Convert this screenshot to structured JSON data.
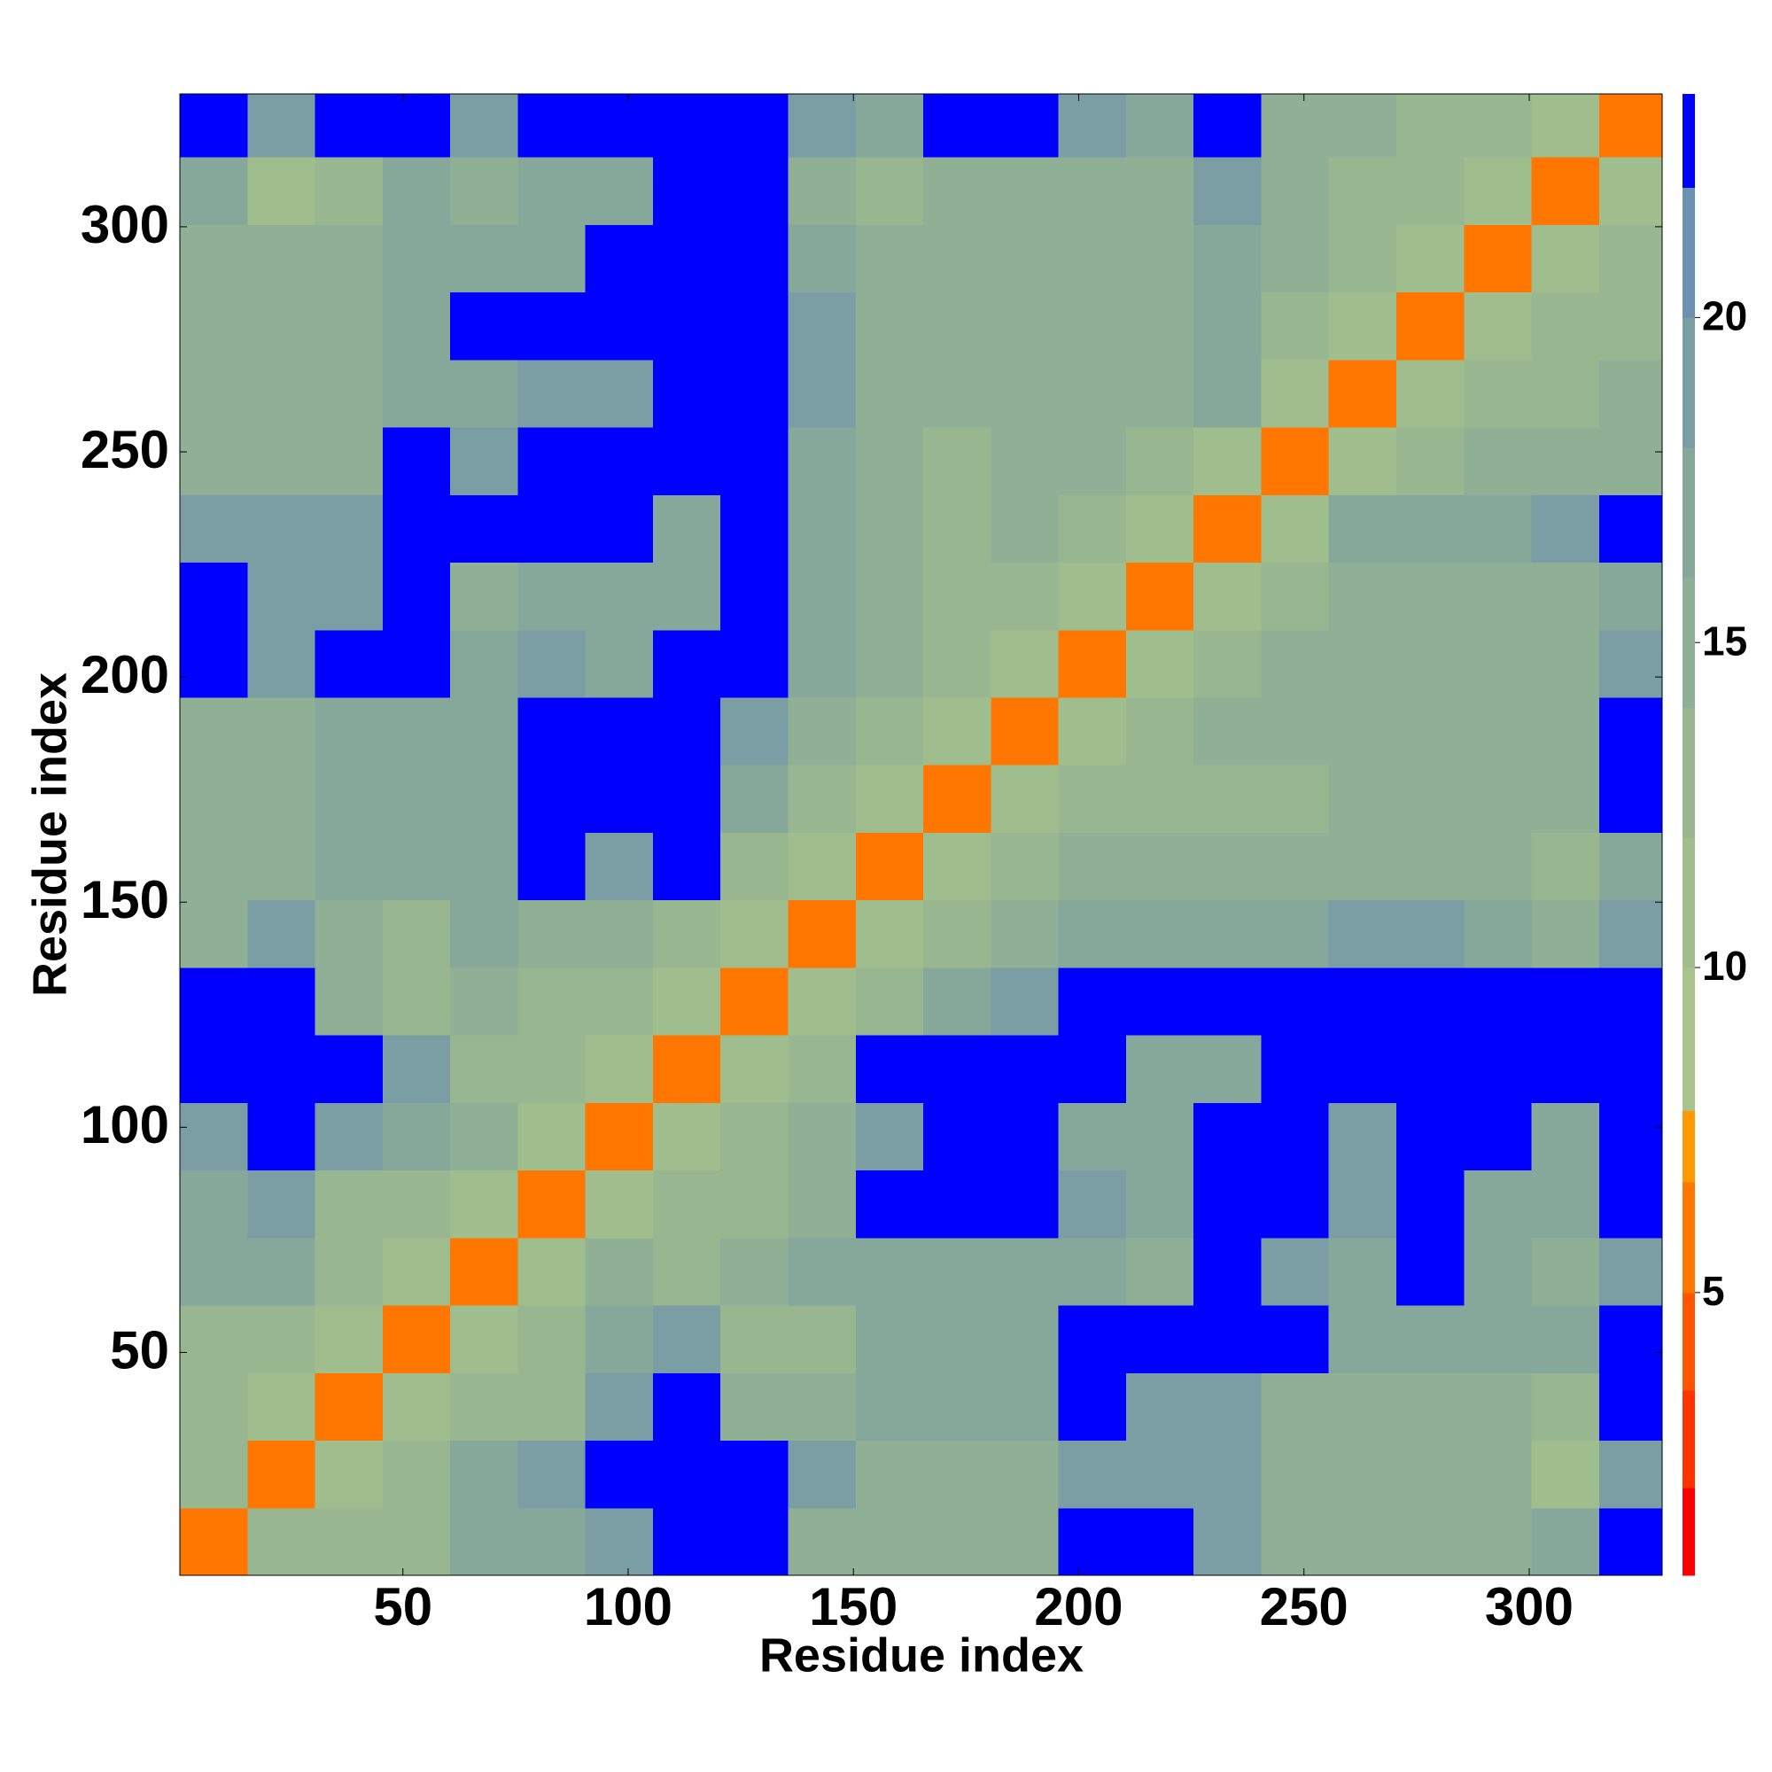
{
  "chart_data": {
    "type": "heatmap",
    "xlabel": "Residue index",
    "ylabel": "Residue index",
    "x": [
      8,
      23,
      38,
      53,
      68,
      83,
      98,
      113,
      128,
      143,
      158,
      173,
      188,
      203,
      218,
      233,
      248,
      263,
      278,
      293,
      308,
      323
    ],
    "y": [
      8,
      23,
      38,
      53,
      68,
      83,
      98,
      113,
      128,
      143,
      158,
      173,
      188,
      203,
      218,
      233,
      248,
      263,
      278,
      293,
      308,
      323
    ],
    "z": [
      [
        6,
        12,
        12,
        13,
        17,
        17,
        19,
        24,
        24,
        15,
        15,
        15,
        15,
        24,
        24,
        19,
        15,
        15,
        15,
        15,
        16,
        24
      ],
      [
        12,
        6,
        11,
        13,
        16,
        18,
        24,
        24,
        24,
        18,
        15,
        15,
        15,
        19,
        18,
        18,
        15,
        14,
        14,
        14,
        11,
        19
      ],
      [
        12,
        11,
        6,
        11,
        13,
        13,
        18,
        24,
        14,
        14,
        16,
        16,
        16,
        24,
        18,
        18,
        15,
        14,
        14,
        14,
        12,
        24
      ],
      [
        13,
        13,
        11,
        6,
        11,
        12,
        16,
        18,
        13,
        13,
        17,
        17,
        17,
        24,
        24,
        24,
        24,
        17,
        17,
        17,
        16,
        24
      ],
      [
        17,
        16,
        13,
        11,
        6,
        11,
        14,
        13,
        14,
        16,
        16,
        16,
        17,
        17,
        15,
        24,
        19,
        16,
        24,
        17,
        15,
        19
      ],
      [
        17,
        18,
        13,
        12,
        11,
        6,
        11,
        13,
        13,
        14,
        24,
        24,
        24,
        19,
        17,
        24,
        24,
        19,
        24,
        17,
        16,
        24
      ],
      [
        19,
        24,
        18,
        16,
        14,
        11,
        6,
        11,
        12,
        15,
        18,
        24,
        24,
        17,
        17,
        24,
        24,
        19,
        24,
        24,
        17,
        24
      ],
      [
        24,
        24,
        24,
        18,
        13,
        13,
        11,
        6,
        11,
        13,
        24,
        24,
        24,
        24,
        17,
        17,
        24,
        24,
        24,
        24,
        24,
        24
      ],
      [
        24,
        24,
        14,
        13,
        14,
        13,
        12,
        11,
        6,
        11,
        13,
        16,
        18,
        24,
        24,
        24,
        24,
        24,
        24,
        24,
        24,
        24
      ],
      [
        15,
        18,
        14,
        13,
        16,
        14,
        15,
        13,
        11,
        6,
        11,
        12,
        15,
        17,
        17,
        17,
        17,
        18,
        18,
        16,
        15,
        19
      ],
      [
        15,
        15,
        16,
        17,
        16,
        24,
        18,
        24,
        13,
        11,
        6,
        11,
        12,
        15,
        15,
        15,
        15,
        15,
        15,
        15,
        12,
        17
      ],
      [
        15,
        15,
        16,
        17,
        16,
        24,
        24,
        24,
        16,
        12,
        11,
        6,
        11,
        13,
        13,
        13,
        13,
        15,
        15,
        15,
        14,
        24
      ],
      [
        15,
        15,
        16,
        17,
        17,
        24,
        24,
        24,
        18,
        15,
        12,
        11,
        6,
        11,
        13,
        14,
        14,
        14,
        14,
        14,
        15,
        24
      ],
      [
        24,
        19,
        24,
        24,
        17,
        19,
        17,
        24,
        24,
        17,
        15,
        13,
        11,
        6,
        11,
        13,
        15,
        15,
        15,
        15,
        15,
        18
      ],
      [
        24,
        18,
        18,
        24,
        15,
        17,
        17,
        17,
        24,
        17,
        15,
        13,
        13,
        11,
        6,
        11,
        13,
        14,
        14,
        14,
        14,
        17
      ],
      [
        19,
        18,
        18,
        24,
        24,
        24,
        24,
        17,
        24,
        17,
        15,
        13,
        14,
        13,
        11,
        6,
        11,
        16,
        17,
        17,
        19,
        24
      ],
      [
        15,
        15,
        15,
        24,
        19,
        24,
        24,
        24,
        24,
        17,
        15,
        13,
        14,
        15,
        13,
        11,
        6,
        11,
        13,
        15,
        14,
        15
      ],
      [
        15,
        14,
        14,
        17,
        16,
        19,
        19,
        24,
        24,
        18,
        15,
        15,
        14,
        15,
        14,
        16,
        11,
        6,
        11,
        13,
        13,
        15
      ],
      [
        15,
        14,
        14,
        17,
        24,
        24,
        24,
        24,
        24,
        18,
        15,
        15,
        14,
        15,
        14,
        17,
        13,
        11,
        6,
        11,
        12,
        13
      ],
      [
        15,
        14,
        14,
        17,
        17,
        17,
        24,
        24,
        24,
        16,
        15,
        15,
        14,
        15,
        14,
        17,
        15,
        13,
        11,
        6,
        11,
        13
      ],
      [
        16,
        11,
        12,
        16,
        15,
        16,
        17,
        24,
        24,
        15,
        12,
        14,
        15,
        15,
        14,
        19,
        14,
        13,
        12,
        11,
        6,
        11
      ],
      [
        24,
        19,
        24,
        24,
        19,
        24,
        24,
        24,
        24,
        19,
        17,
        24,
        24,
        18,
        17,
        24,
        15,
        15,
        13,
        13,
        11,
        6
      ]
    ],
    "xlim": [
      0.5,
      329.5
    ],
    "ylim": [
      0.5,
      329.5
    ],
    "xticks": [
      50,
      100,
      150,
      200,
      250,
      300
    ],
    "yticks": [
      50,
      100,
      150,
      200,
      250,
      300
    ],
    "levels": [
      0.65,
      2,
      3.5,
      5,
      6.7,
      7.8,
      10,
      12,
      14,
      16,
      18,
      20,
      22,
      23.44
    ],
    "colors": [
      "#ff0000",
      "#ff3300",
      "#ff5500",
      "#ff7700",
      "#ff9900",
      "#a8c48a",
      "#a0be8d",
      "#98b790",
      "#8fb095",
      "#85a89b",
      "#7a9ea4",
      "#6c92b0",
      "#0000ff"
    ],
    "cbarticks": [
      5,
      10,
      15,
      20
    ]
  }
}
